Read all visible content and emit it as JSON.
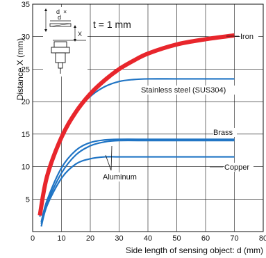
{
  "chart_data": {
    "type": "line",
    "xlabel": "Side length of sensing object: d (mm)",
    "ylabel": "Distance X (mm)",
    "xlim": [
      0,
      80
    ],
    "ylim": [
      0,
      35
    ],
    "x_ticks": [
      "0",
      "10",
      "20",
      "30",
      "40",
      "50",
      "60",
      "70",
      "80"
    ],
    "y_ticks": [
      "5",
      "10",
      "15",
      "20",
      "25",
      "30",
      "35"
    ],
    "grid": true,
    "annotation": "t = 1 mm",
    "inset": {
      "d_label": "d",
      "x_label": "X",
      "cross": "×"
    },
    "colors": {
      "iron": "#e8262c",
      "others": "#1f74c4"
    },
    "series": [
      {
        "name": "Iron",
        "color": "#e8262c",
        "x": [
          2.5,
          5,
          10,
          15,
          20,
          25,
          30,
          35,
          40,
          50,
          60,
          70
        ],
        "y": [
          2.5,
          8.5,
          14.5,
          18.4,
          21.2,
          23.3,
          25.0,
          26.3,
          27.4,
          28.8,
          29.6,
          30.2
        ]
      },
      {
        "name": "Stainless steel (SUS304)",
        "color": "#1f74c4",
        "x": [
          2.5,
          5,
          10,
          15,
          20,
          25,
          30,
          35,
          40,
          50,
          60,
          70
        ],
        "y": [
          2.3,
          8.4,
          14.8,
          18.4,
          20.8,
          22.3,
          23.1,
          23.4,
          23.5,
          23.5,
          23.5,
          23.5
        ]
      },
      {
        "name": "Brass",
        "color": "#1f74c4",
        "x": [
          3,
          5,
          10,
          15,
          20,
          25,
          30,
          40,
          50,
          60,
          70
        ],
        "y": [
          1.5,
          4.8,
          9.8,
          12.5,
          13.7,
          14.1,
          14.2,
          14.2,
          14.2,
          14.2,
          14.2
        ]
      },
      {
        "name": "Copper",
        "color": "#1f74c4",
        "x": [
          3,
          5,
          10,
          15,
          20,
          25,
          30,
          40,
          50,
          60,
          70
        ],
        "y": [
          0.8,
          4.0,
          8.2,
          10.4,
          11.2,
          11.5,
          11.5,
          11.5,
          11.5,
          11.5,
          11.5
        ]
      },
      {
        "name": "Aluminum",
        "color": "#1f74c4",
        "x": [
          3,
          5,
          10,
          15,
          20,
          25,
          30,
          40,
          50,
          60,
          70
        ],
        "y": [
          1.2,
          4.4,
          9.0,
          11.8,
          13.2,
          13.8,
          14.0,
          14.0,
          14.0,
          14.0,
          14.0
        ]
      }
    ]
  }
}
